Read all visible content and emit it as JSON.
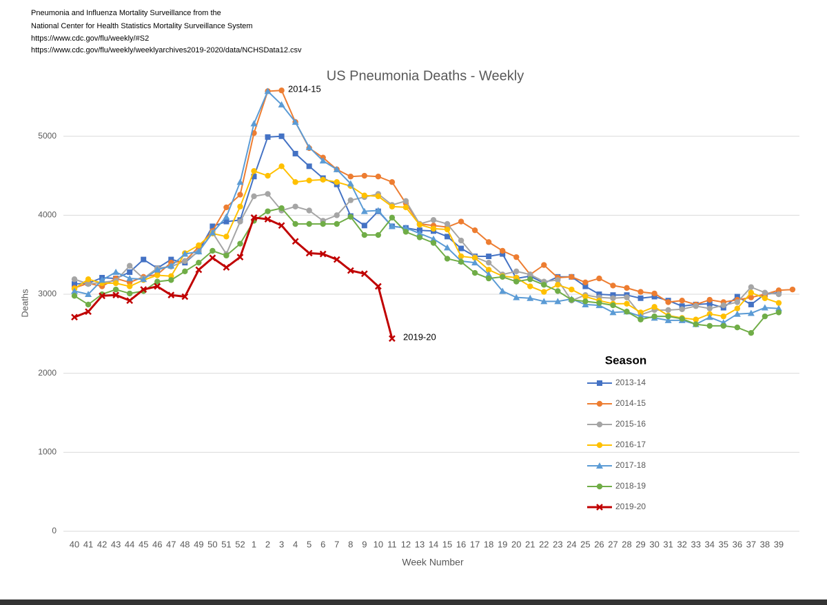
{
  "header": [
    "Pneumonia and Influenza Mortality Surveillance from the",
    "National Center for Health Statistics Mortality Surveillance System",
    "https://www.cdc.gov/flu/weekly/#S2",
    "https://www.cdc.gov/flu/weekly/weeklyarchives2019-2020/data/NCHSData12.csv"
  ],
  "chart_data": {
    "type": "line",
    "title": "US Pneumonia Deaths - Weekly",
    "x_label": "Week Number",
    "y_label": "Deaths",
    "legend_title": "Season",
    "legend": "right",
    "grid": true,
    "annotations": [
      "2014-15",
      "2019-20"
    ],
    "categories": [
      40,
      41,
      42,
      43,
      44,
      45,
      46,
      47,
      48,
      49,
      50,
      51,
      52,
      1,
      2,
      3,
      4,
      5,
      6,
      7,
      8,
      9,
      10,
      11,
      12,
      13,
      14,
      15,
      16,
      17,
      18,
      19,
      20,
      21,
      22,
      23,
      24,
      25,
      26,
      27,
      28,
      29,
      30,
      31,
      32,
      33,
      34,
      35,
      36,
      37,
      38,
      39,
      null
    ],
    "ylim": [
      0,
      5800
    ],
    "yticks": [
      0,
      1000,
      2000,
      3000,
      4000,
      5000
    ],
    "series": [
      {
        "name": "2013-14",
        "color": "#4472c4",
        "marker": "square",
        "values": [
          3130,
          3140,
          3210,
          3200,
          3280,
          3440,
          3330,
          3440,
          3400,
          3550,
          3860,
          3920,
          3940,
          4490,
          4990,
          5000,
          4780,
          4620,
          4470,
          4390,
          3990,
          3870,
          4050,
          3860,
          3840,
          3810,
          3800,
          3730,
          3580,
          3480,
          3480,
          3510,
          3200,
          3230,
          3140,
          3220,
          3220,
          3100,
          3000,
          2990,
          2990,
          2950,
          2970,
          2920,
          2850,
          2870,
          2880,
          2830,
          2970,
          2870,
          3000,
          3020,
          null
        ]
      },
      {
        "name": "2014-15",
        "color": "#ed7d31",
        "marker": "circle",
        "values": [
          3080,
          3140,
          3100,
          3200,
          3150,
          3220,
          3250,
          3400,
          3420,
          3600,
          3800,
          4100,
          4260,
          5040,
          5570,
          5580,
          5180,
          4850,
          4730,
          4580,
          4490,
          4500,
          4490,
          4420,
          4150,
          3890,
          3870,
          3850,
          3920,
          3810,
          3660,
          3550,
          3470,
          3250,
          3370,
          3210,
          3220,
          3150,
          3200,
          3110,
          3080,
          3030,
          3010,
          2900,
          2920,
          2870,
          2930,
          2900,
          2930,
          2960,
          3000,
          3050,
          3060
        ]
      },
      {
        "name": "2015-16",
        "color": "#a5a5a5",
        "marker": "circle",
        "values": [
          3190,
          3130,
          3150,
          3170,
          3360,
          3200,
          3330,
          3350,
          3420,
          3540,
          3780,
          3510,
          3920,
          4240,
          4270,
          4060,
          4110,
          4060,
          3930,
          4000,
          4190,
          4230,
          4270,
          4130,
          4180,
          3890,
          3940,
          3890,
          3680,
          3470,
          3400,
          3250,
          3290,
          3250,
          3160,
          3180,
          2920,
          2990,
          2960,
          2950,
          2960,
          2740,
          2800,
          2800,
          2810,
          2850,
          2820,
          2860,
          2900,
          3090,
          3020,
          3000,
          null
        ]
      },
      {
        "name": "2016-17",
        "color": "#ffc000",
        "marker": "circle",
        "values": [
          3070,
          3190,
          3140,
          3140,
          3100,
          3180,
          3240,
          3230,
          3520,
          3620,
          3770,
          3730,
          4110,
          4560,
          4500,
          4620,
          4420,
          4440,
          4450,
          4420,
          4370,
          4250,
          4240,
          4110,
          4100,
          3880,
          3830,
          3820,
          3480,
          3460,
          3310,
          3230,
          3210,
          3100,
          3030,
          3120,
          3060,
          2970,
          2920,
          2880,
          2880,
          2770,
          2840,
          2730,
          2700,
          2680,
          2750,
          2720,
          2820,
          3020,
          2950,
          2890,
          null
        ]
      },
      {
        "name": "2017-18",
        "color": "#5b9bd5",
        "marker": "triangle",
        "values": [
          3040,
          3000,
          3180,
          3280,
          3200,
          3190,
          3310,
          3360,
          3510,
          3540,
          3780,
          3980,
          4420,
          5160,
          5570,
          5400,
          5180,
          4860,
          4690,
          4580,
          4400,
          4050,
          4060,
          3860,
          3840,
          3770,
          3700,
          3590,
          3420,
          3400,
          3250,
          3040,
          2960,
          2950,
          2910,
          2910,
          2940,
          2870,
          2860,
          2770,
          2780,
          2720,
          2700,
          2670,
          2670,
          2620,
          2710,
          2640,
          2750,
          2760,
          2830,
          2820,
          null
        ]
      },
      {
        "name": "2018-19",
        "color": "#70ad47",
        "marker": "circle",
        "values": [
          2980,
          2870,
          3000,
          3060,
          3010,
          3040,
          3160,
          3180,
          3290,
          3400,
          3550,
          3490,
          3640,
          3930,
          4050,
          4090,
          3890,
          3890,
          3890,
          3890,
          3980,
          3750,
          3750,
          3970,
          3790,
          3720,
          3650,
          3450,
          3410,
          3270,
          3200,
          3220,
          3160,
          3190,
          3120,
          3040,
          2930,
          2910,
          2890,
          2860,
          2780,
          2680,
          2720,
          2720,
          2690,
          2620,
          2600,
          2600,
          2580,
          2510,
          2720,
          2770,
          null
        ]
      },
      {
        "name": "2019-20",
        "color": "#c00000",
        "marker": "x",
        "width": 3,
        "values": [
          2710,
          2780,
          2980,
          2990,
          2920,
          3060,
          3100,
          2990,
          2970,
          3310,
          3460,
          3340,
          3470,
          3970,
          3950,
          3870,
          3670,
          3520,
          3510,
          3440,
          3300,
          3260,
          3100,
          2440,
          null,
          null,
          null,
          null,
          null,
          null,
          null,
          null,
          null,
          null,
          null,
          null,
          null,
          null,
          null,
          null,
          null,
          null,
          null,
          null,
          null,
          null,
          null,
          null,
          null,
          null,
          null,
          null,
          null
        ]
      }
    ]
  }
}
